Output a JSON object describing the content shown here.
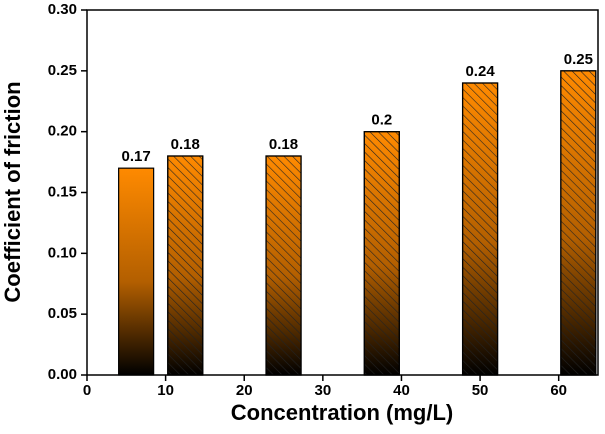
{
  "chart_data": {
    "type": "bar",
    "x_label": "Concentration (mg/L)",
    "y_label": "Coefficient of friction",
    "x": [
      6.25,
      12.5,
      25,
      37.5,
      50,
      62.5
    ],
    "values": [
      0.17,
      0.18,
      0.18,
      0.2,
      0.24,
      0.25
    ],
    "hatch": [
      false,
      true,
      true,
      true,
      true,
      true
    ],
    "color": "#ff8a00",
    "xlim": [
      0,
      65
    ],
    "xticks": [
      0,
      10,
      20,
      30,
      40,
      50,
      60
    ],
    "ylim": [
      0,
      0.3
    ],
    "yticks": [
      {
        "value": 0,
        "label": "0.00"
      },
      {
        "value": 0.05,
        "label": "0.05"
      },
      {
        "value": 0.1,
        "label": "0.10"
      },
      {
        "value": 0.15,
        "label": "0.15"
      },
      {
        "value": 0.2,
        "label": "0.20"
      },
      {
        "value": 0.25,
        "label": "0.25"
      },
      {
        "value": 0.3,
        "label": "0.30"
      }
    ],
    "grid": false
  }
}
